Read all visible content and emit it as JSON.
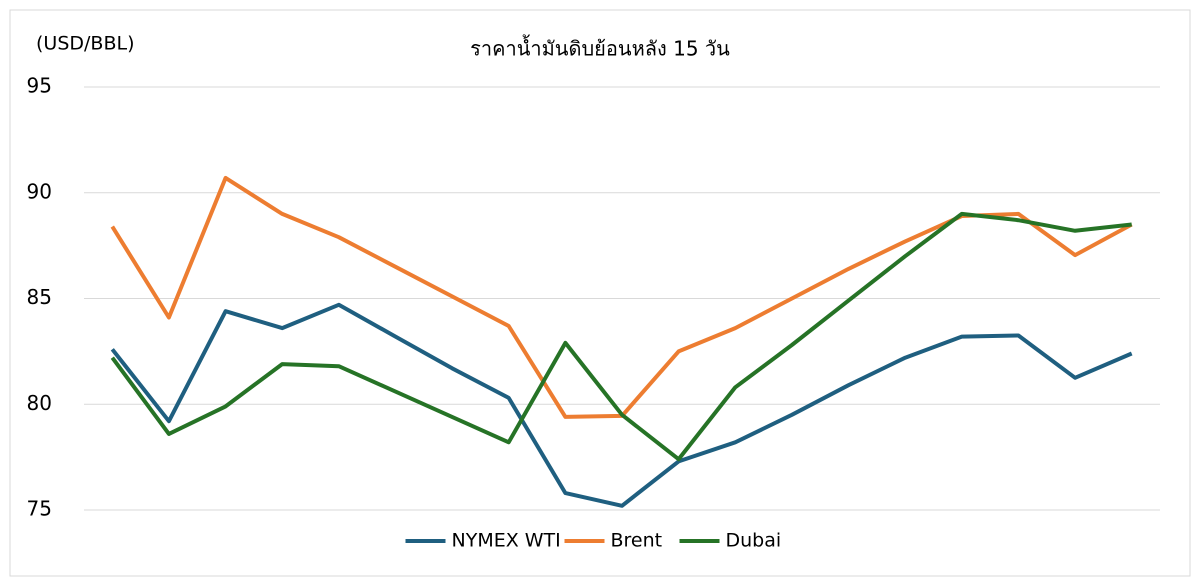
{
  "chart_data": {
    "type": "line",
    "title": "ราคาน้ำมันดิบย้อนหลัง 15 วัน",
    "y_label": "(USD/BBL)",
    "categories": [
      null,
      null,
      null,
      null,
      null,
      null,
      null,
      null,
      null,
      null,
      null,
      null,
      null,
      null,
      null,
      null,
      null,
      null,
      null
    ],
    "series": [
      {
        "name": "NYMEX WTI",
        "color": "#1f5f80",
        "values": [
          82.6,
          79.2,
          84.4,
          83.6,
          84.7,
          83.2,
          81.7,
          80.3,
          75.8,
          75.2,
          77.3,
          78.2,
          79.5,
          80.9,
          82.2,
          83.2,
          83.25,
          81.25,
          82.4
        ]
      },
      {
        "name": "Brent",
        "color": "#ed7d31",
        "values": [
          88.4,
          84.1,
          90.7,
          89.0,
          87.9,
          86.5,
          85.1,
          83.7,
          79.4,
          79.45,
          82.5,
          83.6,
          85.0,
          86.4,
          87.7,
          88.9,
          89.0,
          87.05,
          88.5
        ]
      },
      {
        "name": "Dubai",
        "color": "#267326",
        "values": [
          82.2,
          78.6,
          79.9,
          81.9,
          81.8,
          80.6,
          79.4,
          78.2,
          82.9,
          79.5,
          77.4,
          80.8,
          82.8,
          84.9,
          87.0,
          89.0,
          88.7,
          88.2,
          88.5
        ]
      }
    ],
    "ylim": [
      75,
      95
    ],
    "yticks": [
      75,
      80,
      85,
      90,
      95
    ],
    "grid": true,
    "legend": "bottom"
  }
}
